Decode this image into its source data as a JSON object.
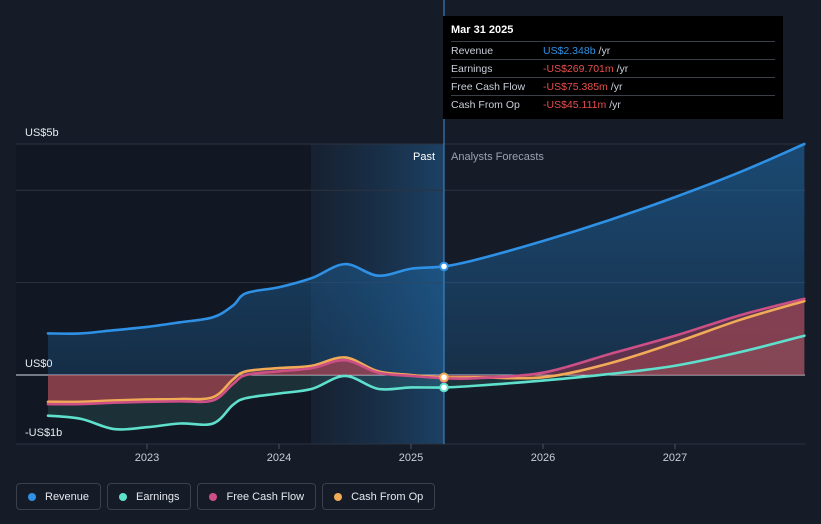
{
  "chart_data": {
    "type": "line",
    "x_ticks": [
      "2023",
      "2024",
      "2025",
      "2026",
      "2027"
    ],
    "y_labels": {
      "top": "US$5b",
      "zero": "US$0",
      "bottom": "-US$1b"
    },
    "ylim": [
      -1.5,
      5
    ],
    "xlim": [
      2022.25,
      2027.98
    ],
    "divider_x": 2025.25,
    "past_label": "Past",
    "forecast_label": "Analysts Forecasts",
    "series": [
      {
        "name": "Revenue",
        "color": "#2e91e5",
        "points": [
          [
            2022.25,
            0.9
          ],
          [
            2022.5,
            0.9
          ],
          [
            2022.75,
            0.97
          ],
          [
            2023.0,
            1.04
          ],
          [
            2023.25,
            1.14
          ],
          [
            2023.5,
            1.25
          ],
          [
            2023.65,
            1.5
          ],
          [
            2023.75,
            1.77
          ],
          [
            2024.0,
            1.9
          ],
          [
            2024.25,
            2.1
          ],
          [
            2024.5,
            2.4
          ],
          [
            2024.75,
            2.15
          ],
          [
            2025.0,
            2.3
          ],
          [
            2025.25,
            2.35
          ],
          [
            2025.5,
            2.5
          ],
          [
            2026.0,
            2.9
          ],
          [
            2026.5,
            3.35
          ],
          [
            2027.0,
            3.85
          ],
          [
            2027.5,
            4.4
          ],
          [
            2027.98,
            5.0
          ]
        ]
      },
      {
        "name": "Earnings",
        "color": "#5fe0cc",
        "points": [
          [
            2022.25,
            -0.88
          ],
          [
            2022.5,
            -0.95
          ],
          [
            2022.75,
            -1.17
          ],
          [
            2023.0,
            -1.13
          ],
          [
            2023.25,
            -1.05
          ],
          [
            2023.5,
            -1.05
          ],
          [
            2023.65,
            -0.65
          ],
          [
            2023.75,
            -0.5
          ],
          [
            2024.0,
            -0.4
          ],
          [
            2024.25,
            -0.3
          ],
          [
            2024.5,
            -0.02
          ],
          [
            2024.75,
            -0.3
          ],
          [
            2025.0,
            -0.27
          ],
          [
            2025.25,
            -0.27
          ],
          [
            2025.5,
            -0.23
          ],
          [
            2026.0,
            -0.12
          ],
          [
            2026.5,
            0.02
          ],
          [
            2027.0,
            0.2
          ],
          [
            2027.5,
            0.5
          ],
          [
            2027.98,
            0.85
          ]
        ]
      },
      {
        "name": "Free Cash Flow",
        "color": "#cc4f86",
        "points": [
          [
            2022.25,
            -0.63
          ],
          [
            2022.5,
            -0.63
          ],
          [
            2022.75,
            -0.6
          ],
          [
            2023.0,
            -0.58
          ],
          [
            2023.25,
            -0.57
          ],
          [
            2023.5,
            -0.55
          ],
          [
            2023.65,
            -0.2
          ],
          [
            2023.75,
            0.0
          ],
          [
            2024.0,
            0.08
          ],
          [
            2024.25,
            0.15
          ],
          [
            2024.5,
            0.32
          ],
          [
            2024.75,
            0.05
          ],
          [
            2025.0,
            -0.02
          ],
          [
            2025.25,
            -0.07
          ],
          [
            2025.5,
            -0.07
          ],
          [
            2026.0,
            0.05
          ],
          [
            2026.5,
            0.45
          ],
          [
            2027.0,
            0.85
          ],
          [
            2027.5,
            1.3
          ],
          [
            2027.98,
            1.65
          ]
        ]
      },
      {
        "name": "Cash From Op",
        "color": "#f1aa57",
        "points": [
          [
            2022.25,
            -0.58
          ],
          [
            2022.5,
            -0.58
          ],
          [
            2022.75,
            -0.55
          ],
          [
            2023.0,
            -0.53
          ],
          [
            2023.25,
            -0.52
          ],
          [
            2023.5,
            -0.48
          ],
          [
            2023.65,
            -0.1
          ],
          [
            2023.75,
            0.08
          ],
          [
            2024.0,
            0.15
          ],
          [
            2024.25,
            0.2
          ],
          [
            2024.5,
            0.38
          ],
          [
            2024.75,
            0.08
          ],
          [
            2025.0,
            0.0
          ],
          [
            2025.25,
            -0.05
          ],
          [
            2025.5,
            -0.05
          ],
          [
            2026.0,
            -0.05
          ],
          [
            2026.5,
            0.25
          ],
          [
            2027.0,
            0.7
          ],
          [
            2027.5,
            1.2
          ],
          [
            2027.98,
            1.6
          ]
        ]
      }
    ]
  },
  "tooltip": {
    "date": "Mar 31 2025",
    "rows": [
      {
        "label": "Revenue",
        "value": "US$2.348b",
        "unit": "/yr",
        "color": "#2e91e5"
      },
      {
        "label": "Earnings",
        "value": "-US$269.701m",
        "unit": "/yr",
        "color": "#e94e4e"
      },
      {
        "label": "Free Cash Flow",
        "value": "-US$75.385m",
        "unit": "/yr",
        "color": "#e94e4e"
      },
      {
        "label": "Cash From Op",
        "value": "-US$45.111m",
        "unit": "/yr",
        "color": "#e94e4e"
      }
    ]
  },
  "legend": [
    {
      "label": "Revenue",
      "color": "#2e91e5"
    },
    {
      "label": "Earnings",
      "color": "#5fe0cc"
    },
    {
      "label": "Free Cash Flow",
      "color": "#cc4f86"
    },
    {
      "label": "Cash From Op",
      "color": "#f1aa57"
    }
  ]
}
